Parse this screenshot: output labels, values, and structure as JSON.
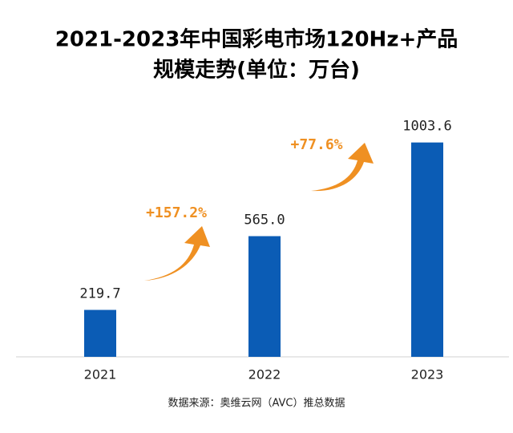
{
  "chart_data": {
    "type": "bar",
    "title": [
      "2021-2023年中国彩电市场120Hz+产品",
      "规模走势(单位：万台)"
    ],
    "categories": [
      "2021",
      "2022",
      "2023"
    ],
    "values": [
      219.7,
      565.0,
      1003.6
    ],
    "value_labels": [
      "219.7",
      "565.0",
      "1003.6"
    ],
    "color": "#0b5cb5",
    "ylim": [
      0,
      1100
    ],
    "annotations": [
      "+157.2%",
      "+77.6%"
    ],
    "annotation_color": "#ef9022",
    "source": "数据来源：奥维云网（AVC）推总数据"
  }
}
